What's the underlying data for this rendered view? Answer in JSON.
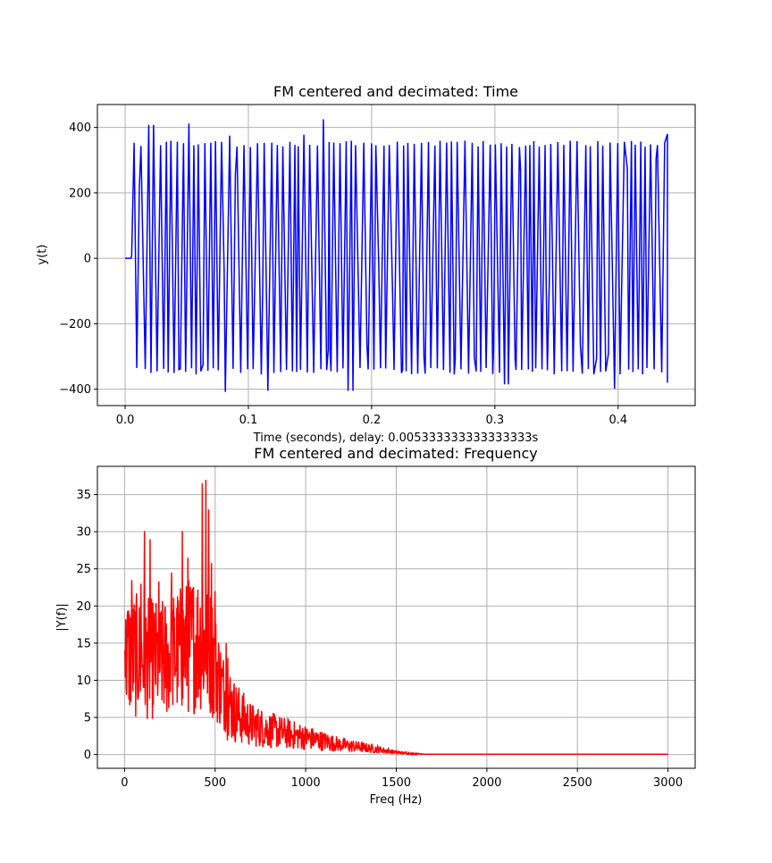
{
  "chart_data": [
    {
      "type": "line",
      "title": "FM centered and decimated: Time",
      "xlabel": "Time (seconds), delay: 0.005333333333333333s",
      "ylabel": "y(t)",
      "xlim": [
        -0.0225,
        0.4625
      ],
      "ylim": [
        -450,
        470
      ],
      "xticks": [
        0.0,
        0.1,
        0.2,
        0.3,
        0.4
      ],
      "xtick_labels": [
        "0.0",
        "0.1",
        "0.2",
        "0.3",
        "0.4"
      ],
      "yticks": [
        -400,
        -200,
        0,
        200,
        400
      ],
      "ytick_labels": [
        "−400",
        "−200",
        "0",
        "200",
        "400"
      ],
      "grid": true,
      "series": [
        {
          "name": "y(t)",
          "color": "#0000ff",
          "signal": {
            "x_start": 0.0,
            "x_end": 0.44,
            "zero_until": 0.0053,
            "high": 350,
            "low": -345,
            "peaks": [
              [
                0.021,
                408
              ],
              [
                0.053,
                412
              ],
              [
                0.16,
                425
              ],
              [
                0.086,
                375
              ],
              [
                0.146,
                378
              ],
              [
                0.082,
                -408
              ],
              [
                0.117,
                -405
              ],
              [
                0.183,
                -405
              ],
              [
                0.395,
                -398
              ],
              [
                0.012,
                -385
              ],
              [
                0.31,
                -385
              ]
            ],
            "mid_points": [
              [
                0.012,
                215
              ],
              [
                0.045,
                -340
              ],
              [
                0.062,
                -325
              ],
              [
                0.08,
                -38
              ],
              [
                0.089,
                255
              ],
              [
                0.113,
                -95
              ],
              [
                0.165,
                -282
              ],
              [
                0.196,
                -265
              ],
              [
                0.207,
                -28
              ],
              [
                0.216,
                -72
              ],
              [
                0.225,
                -340
              ],
              [
                0.242,
                -300
              ],
              [
                0.268,
                -310
              ],
              [
                0.283,
                -302
              ],
              [
                0.3,
                -280
              ],
              [
                0.316,
                -310
              ],
              [
                0.322,
                270
              ],
              [
                0.343,
                -55
              ],
              [
                0.37,
                -265
              ],
              [
                0.382,
                -305
              ],
              [
                0.392,
                -290
              ],
              [
                0.407,
                275
              ],
              [
                0.431,
                305
              ]
            ]
          }
        }
      ]
    },
    {
      "type": "line",
      "title": "FM centered and decimated: Frequency",
      "xlabel": "Freq (Hz)",
      "ylabel": "|Y(f)|",
      "xlim": [
        -150,
        3150
      ],
      "ylim": [
        -1.85,
        38.8
      ],
      "xticks": [
        0,
        500,
        1000,
        1500,
        2000,
        2500,
        3000
      ],
      "xtick_labels": [
        "0",
        "500",
        "1000",
        "1500",
        "2000",
        "2500",
        "3000"
      ],
      "yticks": [
        0,
        5,
        10,
        15,
        20,
        25,
        30,
        35
      ],
      "ytick_labels": [
        "0",
        "5",
        "10",
        "15",
        "20",
        "25",
        "30",
        "35"
      ],
      "grid": true,
      "series": [
        {
          "name": "|Y(f)|",
          "color": "#ff0000",
          "envelope": [
            [
              0,
              14
            ],
            [
              80,
              13.5
            ],
            [
              200,
              13
            ],
            [
              320,
              14.5
            ],
            [
              420,
              16
            ],
            [
              480,
              14
            ],
            [
              540,
              9
            ],
            [
              600,
              6
            ],
            [
              700,
              4
            ],
            [
              800,
              3.3
            ],
            [
              900,
              2.8
            ],
            [
              1000,
              2.3
            ],
            [
              1100,
              1.8
            ],
            [
              1200,
              1.3
            ],
            [
              1300,
              1.0
            ],
            [
              1400,
              0.7
            ],
            [
              1500,
              0.3
            ],
            [
              1600,
              0.1
            ],
            [
              3000,
              0.05
            ]
          ],
          "peaks": [
            [
              448,
              37
            ],
            [
              430,
              36.5
            ],
            [
              110,
              30.1
            ],
            [
              318,
              30.1
            ],
            [
              465,
              33
            ],
            [
              480,
              25.8
            ],
            [
              140,
              29
            ],
            [
              40,
              23.5
            ],
            [
              90,
              23
            ],
            [
              190,
              23.3
            ],
            [
              260,
              24.5
            ],
            [
              350,
              26.5
            ],
            [
              6,
              18.2
            ],
            [
              500,
              22
            ],
            [
              560,
              15
            ],
            [
              570,
              13
            ]
          ],
          "end_x": 3000
        }
      ]
    }
  ]
}
